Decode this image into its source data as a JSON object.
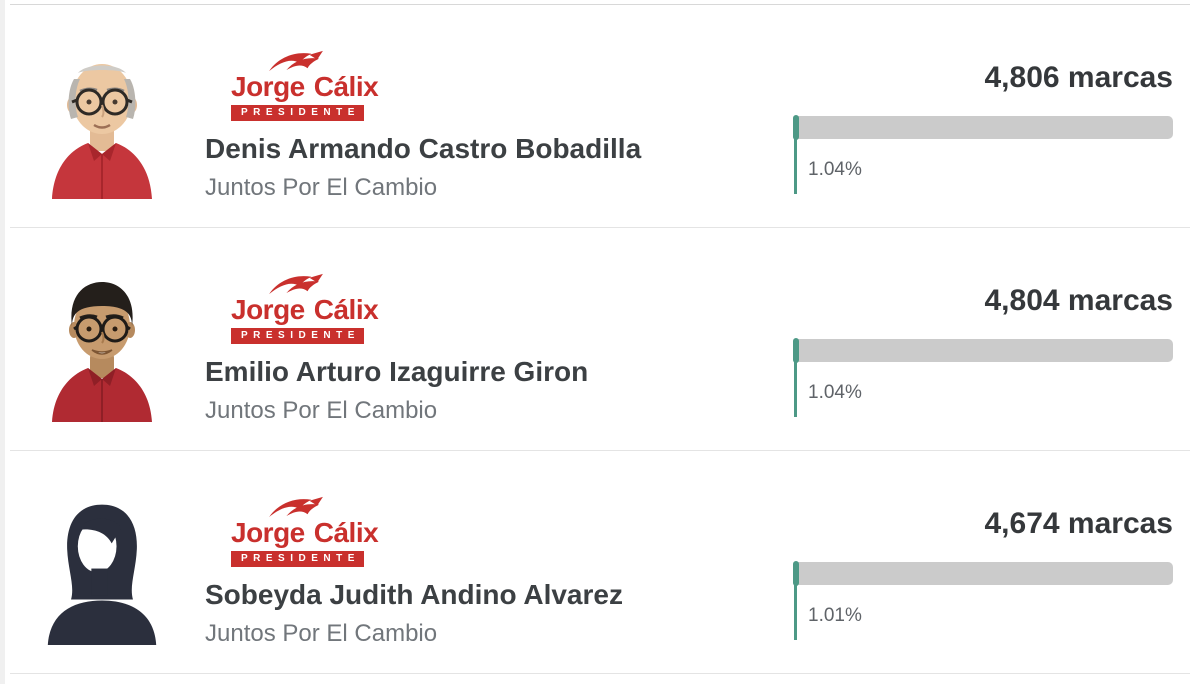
{
  "colors": {
    "logo_red": "#c9302d",
    "bar_green": "#4d9986",
    "bar_track_gray": "#cbcbcb",
    "name_text": "#3c4043",
    "party_text": "#71767b",
    "percent_text": "#5f6368"
  },
  "list": {
    "rows": [
      {
        "photo": "elderly",
        "logo": {
          "word1": "Jorge",
          "word2": "Cálix",
          "banner": "PRESIDENTE"
        },
        "name": "Denis Armando Castro Bobadilla",
        "party": "Juntos Por El Cambio",
        "marcas_label": "4,806 marcas",
        "percent_label": "1.04%",
        "percent_value": 1.04
      },
      {
        "photo": "younger",
        "logo": {
          "word1": "Jorge",
          "word2": "Cálix",
          "banner": "PRESIDENTE"
        },
        "name": "Emilio Arturo Izaguirre Giron",
        "party": "Juntos Por El Cambio",
        "marcas_label": "4,804 marcas",
        "percent_label": "1.04%",
        "percent_value": 1.04
      },
      {
        "photo": "silhouette",
        "logo": {
          "word1": "Jorge",
          "word2": "Cálix",
          "banner": "PRESIDENTE"
        },
        "name": "Sobeyda Judith Andino Alvarez",
        "party": "Juntos Por El Cambio",
        "marcas_label": "4,674 marcas",
        "percent_label": "1.01%",
        "percent_value": 1.01
      }
    ]
  }
}
